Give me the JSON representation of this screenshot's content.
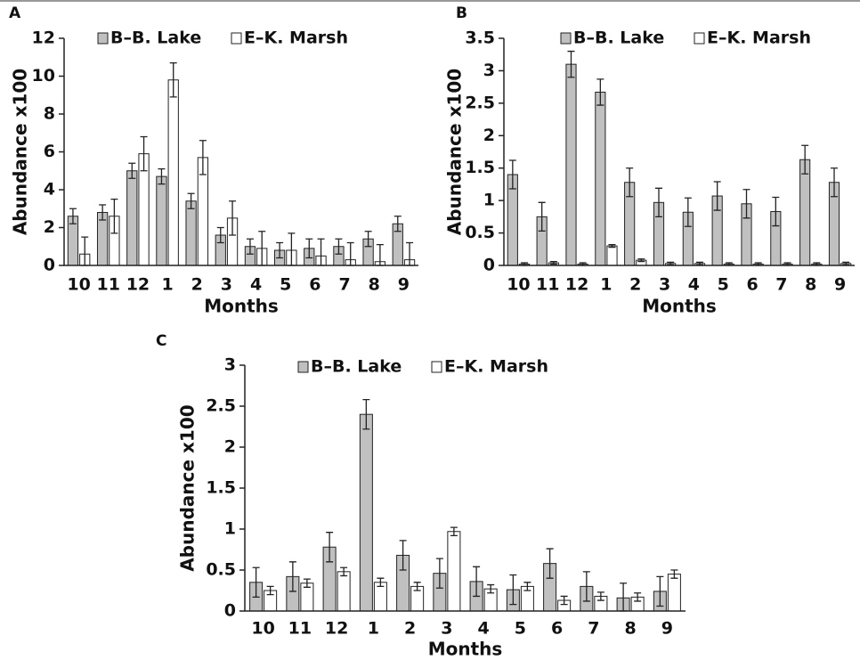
{
  "chart_data": [
    {
      "type": "bar",
      "panel_label": "A",
      "y_label": "Abundance x100",
      "x_label": "Months",
      "categories": [
        "10",
        "11",
        "12",
        "1",
        "2",
        "3",
        "4",
        "5",
        "6",
        "7",
        "8",
        "9"
      ],
      "ylim": [
        0,
        12
      ],
      "yticks": [
        0,
        2,
        4,
        6,
        8,
        10,
        12
      ],
      "series": [
        {
          "name": "B–B. Lake",
          "color": "#c0c0c0",
          "values": [
            2.6,
            2.8,
            5.0,
            4.7,
            3.4,
            1.6,
            1.0,
            0.8,
            0.9,
            1.0,
            1.4,
            2.2
          ],
          "errors": [
            0.4,
            0.4,
            0.4,
            0.4,
            0.4,
            0.4,
            0.4,
            0.4,
            0.5,
            0.4,
            0.4,
            0.4
          ]
        },
        {
          "name": "E–K. Marsh",
          "color": "#ffffff",
          "values": [
            0.6,
            2.6,
            5.9,
            9.8,
            5.7,
            2.5,
            0.9,
            0.8,
            0.5,
            0.3,
            0.2,
            0.3
          ],
          "errors": [
            0.9,
            0.9,
            0.9,
            0.9,
            0.9,
            0.9,
            0.9,
            0.9,
            0.9,
            0.9,
            0.9,
            0.9
          ]
        }
      ]
    },
    {
      "type": "bar",
      "panel_label": "B",
      "y_label": "Abundance x100",
      "x_label": "Months",
      "categories": [
        "10",
        "11",
        "12",
        "1",
        "2",
        "3",
        "4",
        "5",
        "6",
        "7",
        "8",
        "9"
      ],
      "ylim": [
        0,
        3.5
      ],
      "yticks": [
        0,
        0.5,
        1,
        1.5,
        2,
        2.5,
        3,
        3.5
      ],
      "series": [
        {
          "name": "B–B. Lake",
          "color": "#c0c0c0",
          "values": [
            1.4,
            0.75,
            3.1,
            2.67,
            1.28,
            0.97,
            0.82,
            1.07,
            0.95,
            0.83,
            1.63,
            1.28
          ],
          "errors": [
            0.22,
            0.22,
            0.2,
            0.2,
            0.22,
            0.22,
            0.22,
            0.22,
            0.22,
            0.22,
            0.22,
            0.22
          ]
        },
        {
          "name": "E–K. Marsh",
          "color": "#ffffff",
          "values": [
            0.02,
            0.04,
            0.02,
            0.3,
            0.08,
            0.03,
            0.03,
            0.02,
            0.02,
            0.02,
            0.02,
            0.03
          ],
          "errors": [
            0.02,
            0.02,
            0.02,
            0.02,
            0.02,
            0.02,
            0.02,
            0.02,
            0.02,
            0.02,
            0.02,
            0.02
          ]
        }
      ]
    },
    {
      "type": "bar",
      "panel_label": "C",
      "y_label": "Abundance x100",
      "x_label": "Months",
      "categories": [
        "10",
        "11",
        "12",
        "1",
        "2",
        "3",
        "4",
        "5",
        "6",
        "7",
        "8",
        "9"
      ],
      "ylim": [
        0,
        3
      ],
      "yticks": [
        0,
        0.5,
        1,
        1.5,
        2,
        2.5,
        3
      ],
      "series": [
        {
          "name": "B–B. Lake",
          "color": "#c0c0c0",
          "values": [
            0.35,
            0.42,
            0.78,
            2.4,
            0.68,
            0.46,
            0.36,
            0.26,
            0.58,
            0.3,
            0.16,
            0.24
          ],
          "errors": [
            0.18,
            0.18,
            0.18,
            0.18,
            0.18,
            0.18,
            0.18,
            0.18,
            0.18,
            0.18,
            0.18,
            0.18
          ]
        },
        {
          "name": "E–K. Marsh",
          "color": "#ffffff",
          "values": [
            0.25,
            0.34,
            0.48,
            0.35,
            0.3,
            0.97,
            0.27,
            0.3,
            0.13,
            0.18,
            0.17,
            0.45
          ],
          "errors": [
            0.05,
            0.05,
            0.05,
            0.05,
            0.05,
            0.05,
            0.05,
            0.05,
            0.05,
            0.05,
            0.05,
            0.05
          ]
        }
      ]
    }
  ]
}
